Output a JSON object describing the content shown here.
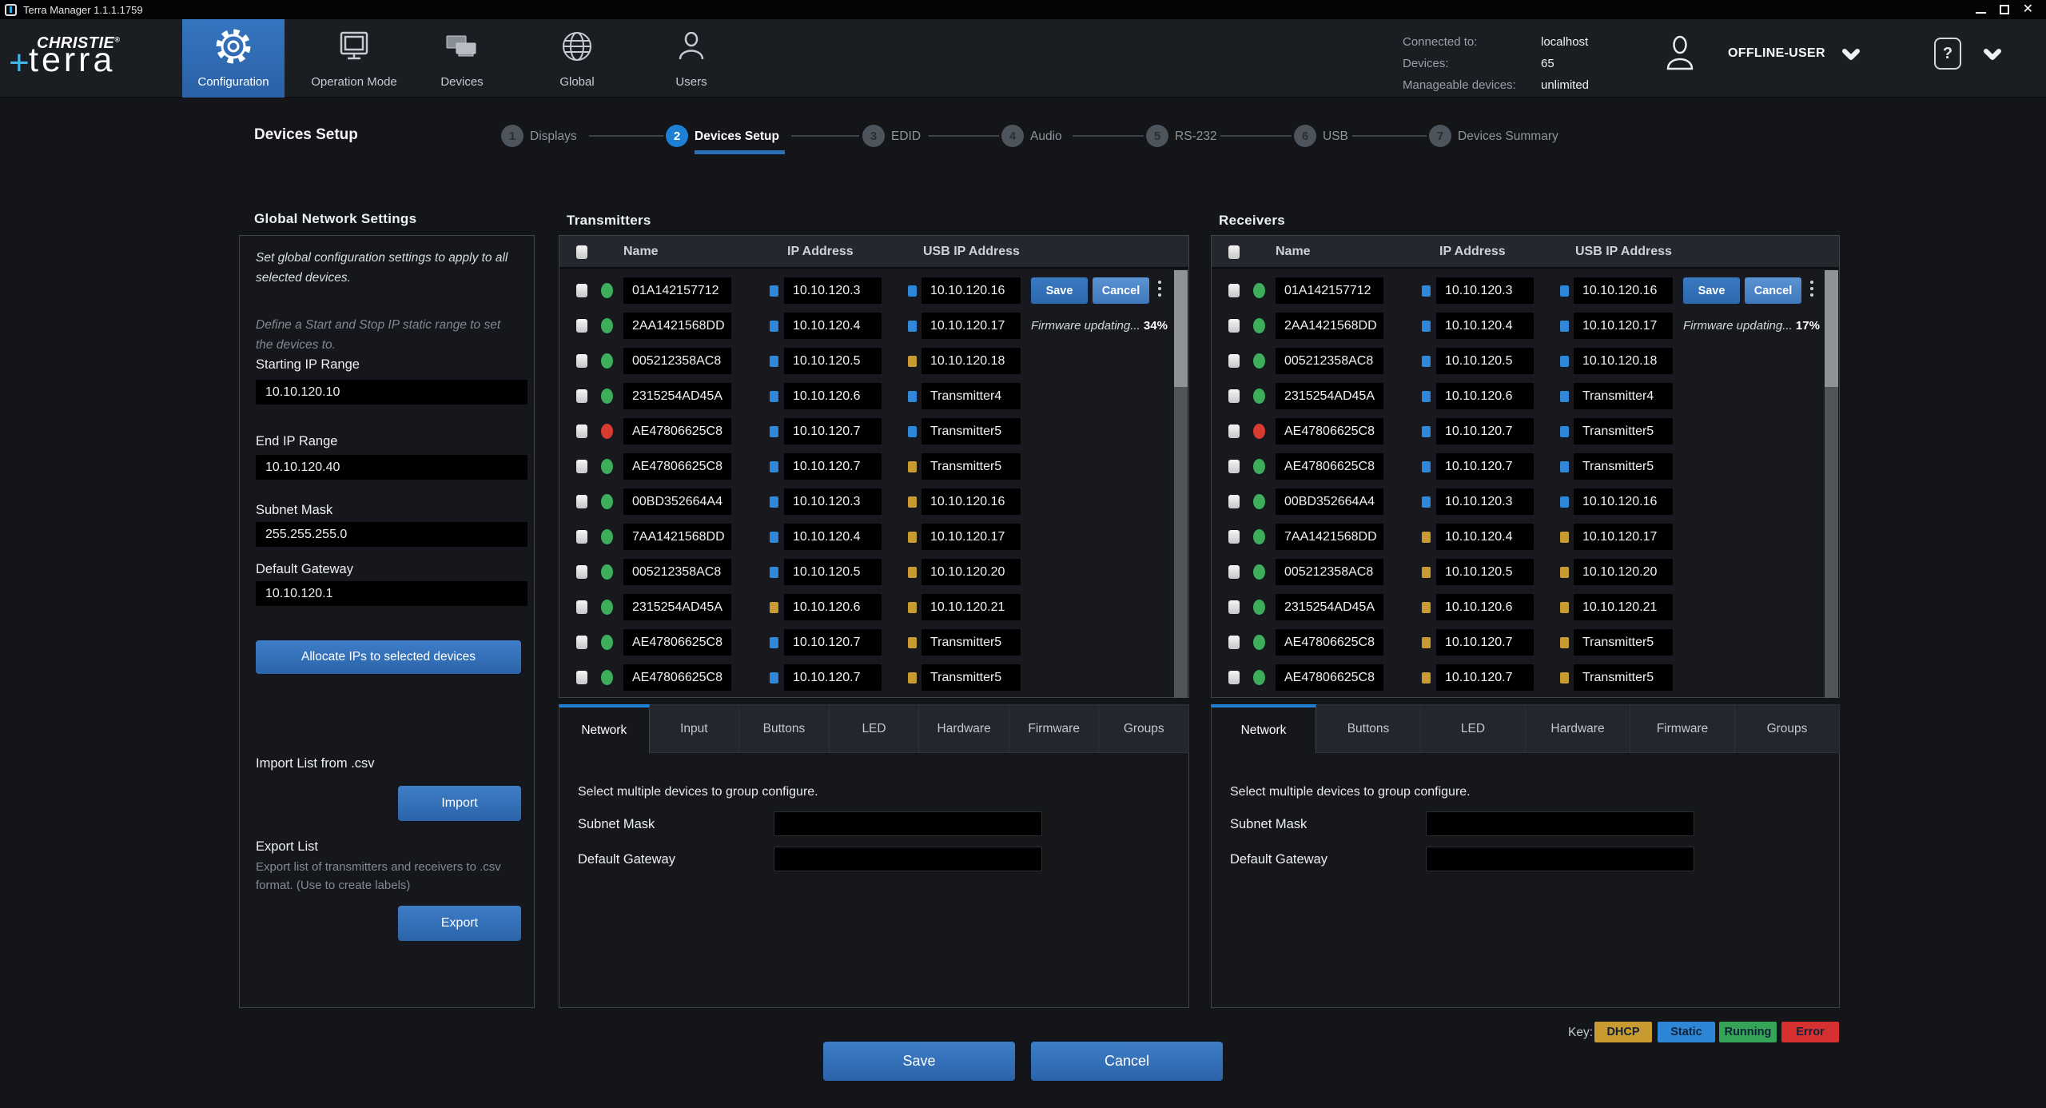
{
  "window": {
    "title": "Terra Manager 1.1.1.1759"
  },
  "nav": {
    "logo_top": "CHRISTIE",
    "logo_reg": "®",
    "logo_plus": "+",
    "logo_bottom": "terra",
    "items": [
      {
        "label": "Configuration",
        "icon": "gear-icon",
        "active": true
      },
      {
        "label": "Operation Mode",
        "icon": "monitor-icon",
        "active": false
      },
      {
        "label": "Devices",
        "icon": "devices-icon",
        "active": false
      },
      {
        "label": "Global",
        "icon": "globe-icon",
        "active": false
      },
      {
        "label": "Users",
        "icon": "users-icon",
        "active": false
      }
    ],
    "status": [
      {
        "label": "Connected to:",
        "value": "localhost"
      },
      {
        "label": "Devices:",
        "value": "65"
      },
      {
        "label": "Manageable devices:",
        "value": "unlimited"
      }
    ],
    "user": "OFFLINE-USER",
    "help": "?"
  },
  "stepper": {
    "page_title": "Devices Setup",
    "steps": [
      {
        "num": "1",
        "label": "Displays",
        "active": false
      },
      {
        "num": "2",
        "label": "Devices Setup",
        "active": true
      },
      {
        "num": "3",
        "label": "EDID",
        "active": false
      },
      {
        "num": "4",
        "label": "Audio",
        "active": false
      },
      {
        "num": "5",
        "label": "RS-232",
        "active": false
      },
      {
        "num": "6",
        "label": "USB",
        "active": false
      },
      {
        "num": "7",
        "label": "Devices Summary",
        "active": false
      }
    ]
  },
  "global_settings": {
    "heading": "Global Network Settings",
    "desc1": "Set global configuration settings to apply to all selected devices.",
    "desc2": "Define a Start and Stop IP static range to set the devices to.",
    "fields": [
      {
        "label": "Starting IP Range",
        "value": "10.10.120.10"
      },
      {
        "label": "End IP Range",
        "value": "10.10.120.40"
      },
      {
        "label": "Subnet Mask",
        "value": "255.255.255.0"
      },
      {
        "label": "Default Gateway",
        "value": "10.10.120.1"
      }
    ],
    "allocate_label": "Allocate IPs to selected devices",
    "import_heading": "Import List from .csv",
    "import_label": "Import",
    "export_heading": "Export List",
    "export_desc": "Export list of transmitters and receivers to .csv format. (Use to create labels)",
    "export_label": "Export"
  },
  "transmitters": {
    "title": "Transmitters",
    "columns": [
      "Name",
      "IP Address",
      "USB IP Address"
    ],
    "save_label": "Save",
    "cancel_label": "Cancel",
    "firmware_note": "Firmware updating...",
    "firmware_pct": "34%",
    "rows": [
      {
        "name": "01A142157712",
        "status": "running",
        "ip": "10.10.120.3",
        "ip_mode": "static",
        "usb": "10.10.120.16",
        "usb_mode": "static",
        "editing": true
      },
      {
        "name": "2AA1421568DD",
        "status": "running",
        "ip": "10.10.120.4",
        "ip_mode": "static",
        "usb": "10.10.120.17",
        "usb_mode": "static",
        "firmware": true
      },
      {
        "name": "005212358AC8",
        "status": "running",
        "ip": "10.10.120.5",
        "ip_mode": "static",
        "usb": "10.10.120.18",
        "usb_mode": "dhcp"
      },
      {
        "name": "2315254AD45A",
        "status": "running",
        "ip": "10.10.120.6",
        "ip_mode": "static",
        "usb": "Transmitter4",
        "usb_mode": "static"
      },
      {
        "name": "AE47806625C8",
        "status": "error",
        "ip": "10.10.120.7",
        "ip_mode": "static",
        "usb": "Transmitter5",
        "usb_mode": "static"
      },
      {
        "name": "AE47806625C8",
        "status": "running",
        "ip": "10.10.120.7",
        "ip_mode": "static",
        "usb": "Transmitter5",
        "usb_mode": "dhcp"
      },
      {
        "name": "00BD352664A4",
        "status": "running",
        "ip": "10.10.120.3",
        "ip_mode": "static",
        "usb": "10.10.120.16",
        "usb_mode": "dhcp"
      },
      {
        "name": "7AA1421568DD",
        "status": "running",
        "ip": "10.10.120.4",
        "ip_mode": "static",
        "usb": "10.10.120.17",
        "usb_mode": "dhcp"
      },
      {
        "name": "005212358AC8",
        "status": "running",
        "ip": "10.10.120.5",
        "ip_mode": "static",
        "usb": "10.10.120.20",
        "usb_mode": "dhcp"
      },
      {
        "name": "2315254AD45A",
        "status": "running",
        "ip": "10.10.120.6",
        "ip_mode": "dhcp",
        "usb": "10.10.120.21",
        "usb_mode": "dhcp"
      },
      {
        "name": "AE47806625C8",
        "status": "running",
        "ip": "10.10.120.7",
        "ip_mode": "static",
        "usb": "Transmitter5",
        "usb_mode": "dhcp"
      },
      {
        "name": "AE47806625C8",
        "status": "running",
        "ip": "10.10.120.7",
        "ip_mode": "static",
        "usb": "Transmitter5",
        "usb_mode": "dhcp"
      }
    ],
    "tabs": [
      "Network",
      "Input",
      "Buttons",
      "LED",
      "Hardware",
      "Firmware",
      "Groups"
    ],
    "active_tab": "Network",
    "note": "Select multiple devices to group configure.",
    "fields": [
      {
        "label": "Subnet Mask",
        "value": ""
      },
      {
        "label": "Default Gateway",
        "value": ""
      }
    ]
  },
  "receivers": {
    "title": "Receivers",
    "columns": [
      "Name",
      "IP Address",
      "USB IP Address"
    ],
    "save_label": "Save",
    "cancel_label": "Cancel",
    "firmware_note": "Firmware updating...",
    "firmware_pct": "17%",
    "rows": [
      {
        "name": "01A142157712",
        "status": "running",
        "ip": "10.10.120.3",
        "ip_mode": "static",
        "usb": "10.10.120.16",
        "usb_mode": "static",
        "editing": true
      },
      {
        "name": "2AA1421568DD",
        "status": "running",
        "ip": "10.10.120.4",
        "ip_mode": "static",
        "usb": "10.10.120.17",
        "usb_mode": "static",
        "firmware": true
      },
      {
        "name": "005212358AC8",
        "status": "running",
        "ip": "10.10.120.5",
        "ip_mode": "static",
        "usb": "10.10.120.18",
        "usb_mode": "static"
      },
      {
        "name": "2315254AD45A",
        "status": "running",
        "ip": "10.10.120.6",
        "ip_mode": "static",
        "usb": "Transmitter4",
        "usb_mode": "static"
      },
      {
        "name": "AE47806625C8",
        "status": "error",
        "ip": "10.10.120.7",
        "ip_mode": "static",
        "usb": "Transmitter5",
        "usb_mode": "static"
      },
      {
        "name": "AE47806625C8",
        "status": "running",
        "ip": "10.10.120.7",
        "ip_mode": "static",
        "usb": "Transmitter5",
        "usb_mode": "static"
      },
      {
        "name": "00BD352664A4",
        "status": "running",
        "ip": "10.10.120.3",
        "ip_mode": "static",
        "usb": "10.10.120.16",
        "usb_mode": "static"
      },
      {
        "name": "7AA1421568DD",
        "status": "running",
        "ip": "10.10.120.4",
        "ip_mode": "dhcp",
        "usb": "10.10.120.17",
        "usb_mode": "dhcp"
      },
      {
        "name": "005212358AC8",
        "status": "running",
        "ip": "10.10.120.5",
        "ip_mode": "dhcp",
        "usb": "10.10.120.20",
        "usb_mode": "dhcp"
      },
      {
        "name": "2315254AD45A",
        "status": "running",
        "ip": "10.10.120.6",
        "ip_mode": "dhcp",
        "usb": "10.10.120.21",
        "usb_mode": "dhcp"
      },
      {
        "name": "AE47806625C8",
        "status": "running",
        "ip": "10.10.120.7",
        "ip_mode": "dhcp",
        "usb": "Transmitter5",
        "usb_mode": "dhcp"
      },
      {
        "name": "AE47806625C8",
        "status": "running",
        "ip": "10.10.120.7",
        "ip_mode": "dhcp",
        "usb": "Transmitter5",
        "usb_mode": "dhcp"
      }
    ],
    "tabs": [
      "Network",
      "Buttons",
      "LED",
      "Hardware",
      "Firmware",
      "Groups"
    ],
    "active_tab": "Network",
    "note": "Select multiple devices to group configure.",
    "fields": [
      {
        "label": "Subnet Mask",
        "value": ""
      },
      {
        "label": "Default Gateway",
        "value": ""
      }
    ]
  },
  "key": {
    "label": "Key:",
    "items": [
      {
        "label": "DHCP",
        "color": "#c79b2f"
      },
      {
        "label": "Static",
        "color": "#2e86d6"
      },
      {
        "label": "Running",
        "color": "#36a457"
      },
      {
        "label": "Error",
        "color": "#d73030"
      }
    ]
  },
  "footer": {
    "save": "Save",
    "cancel": "Cancel"
  }
}
